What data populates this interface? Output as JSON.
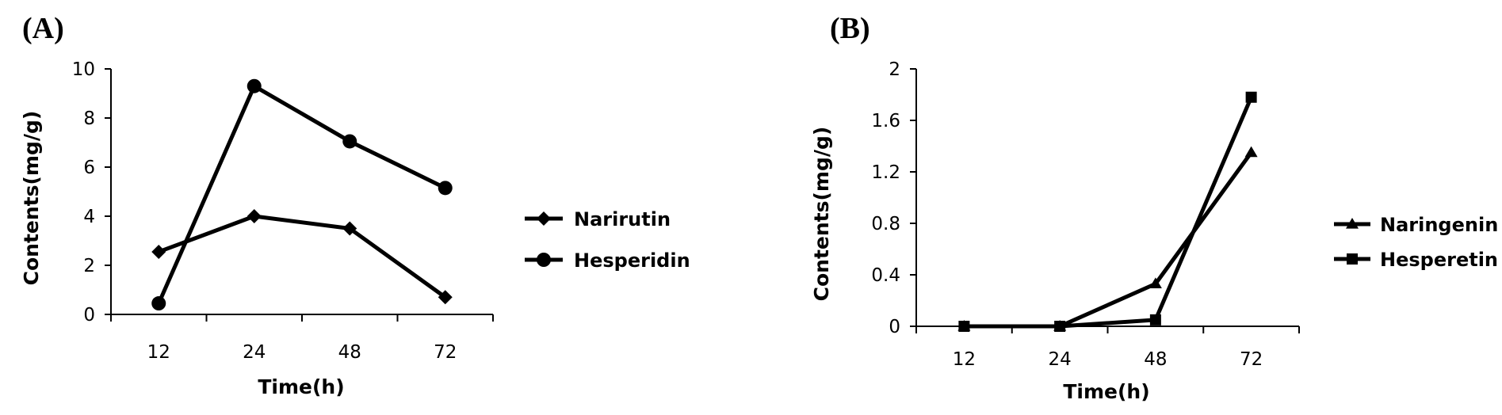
{
  "chart_data": [
    {
      "panel": "(A)",
      "type": "line",
      "categories": [
        "12",
        "24",
        "48",
        "72"
      ],
      "xlabel": "Time(h)",
      "ylabel": "Contents(mg/g)",
      "ylim": [
        0,
        10
      ],
      "yticks": [
        0,
        2,
        4,
        6,
        8,
        10
      ],
      "ytick_labels": [
        "0",
        "2",
        "4",
        "6",
        "8",
        "10"
      ],
      "legend_position": "right",
      "grid": false,
      "series": [
        {
          "name": "Narirutin",
          "marker": "diamond",
          "values": [
            2.55,
            4.0,
            3.5,
            0.7
          ]
        },
        {
          "name": "Hesperidin",
          "marker": "circle",
          "values": [
            0.45,
            9.3,
            7.05,
            5.15
          ]
        }
      ]
    },
    {
      "panel": "(B)",
      "type": "line",
      "categories": [
        "12",
        "24",
        "48",
        "72"
      ],
      "xlabel": "Time(h)",
      "ylabel": "Contents(mg/g)",
      "ylim": [
        0,
        2
      ],
      "yticks": [
        0,
        0.4,
        0.8,
        1.2,
        1.6,
        2
      ],
      "ytick_labels": [
        "0",
        "0.4",
        "0.8",
        "1.2",
        "1.6",
        "2"
      ],
      "legend_position": "right",
      "grid": false,
      "series": [
        {
          "name": "Naringenin",
          "marker": "triangle",
          "values": [
            0,
            0,
            0.33,
            1.35
          ]
        },
        {
          "name": "Hesperetin",
          "marker": "square",
          "values": [
            0,
            0,
            0.05,
            1.78
          ]
        }
      ]
    }
  ]
}
